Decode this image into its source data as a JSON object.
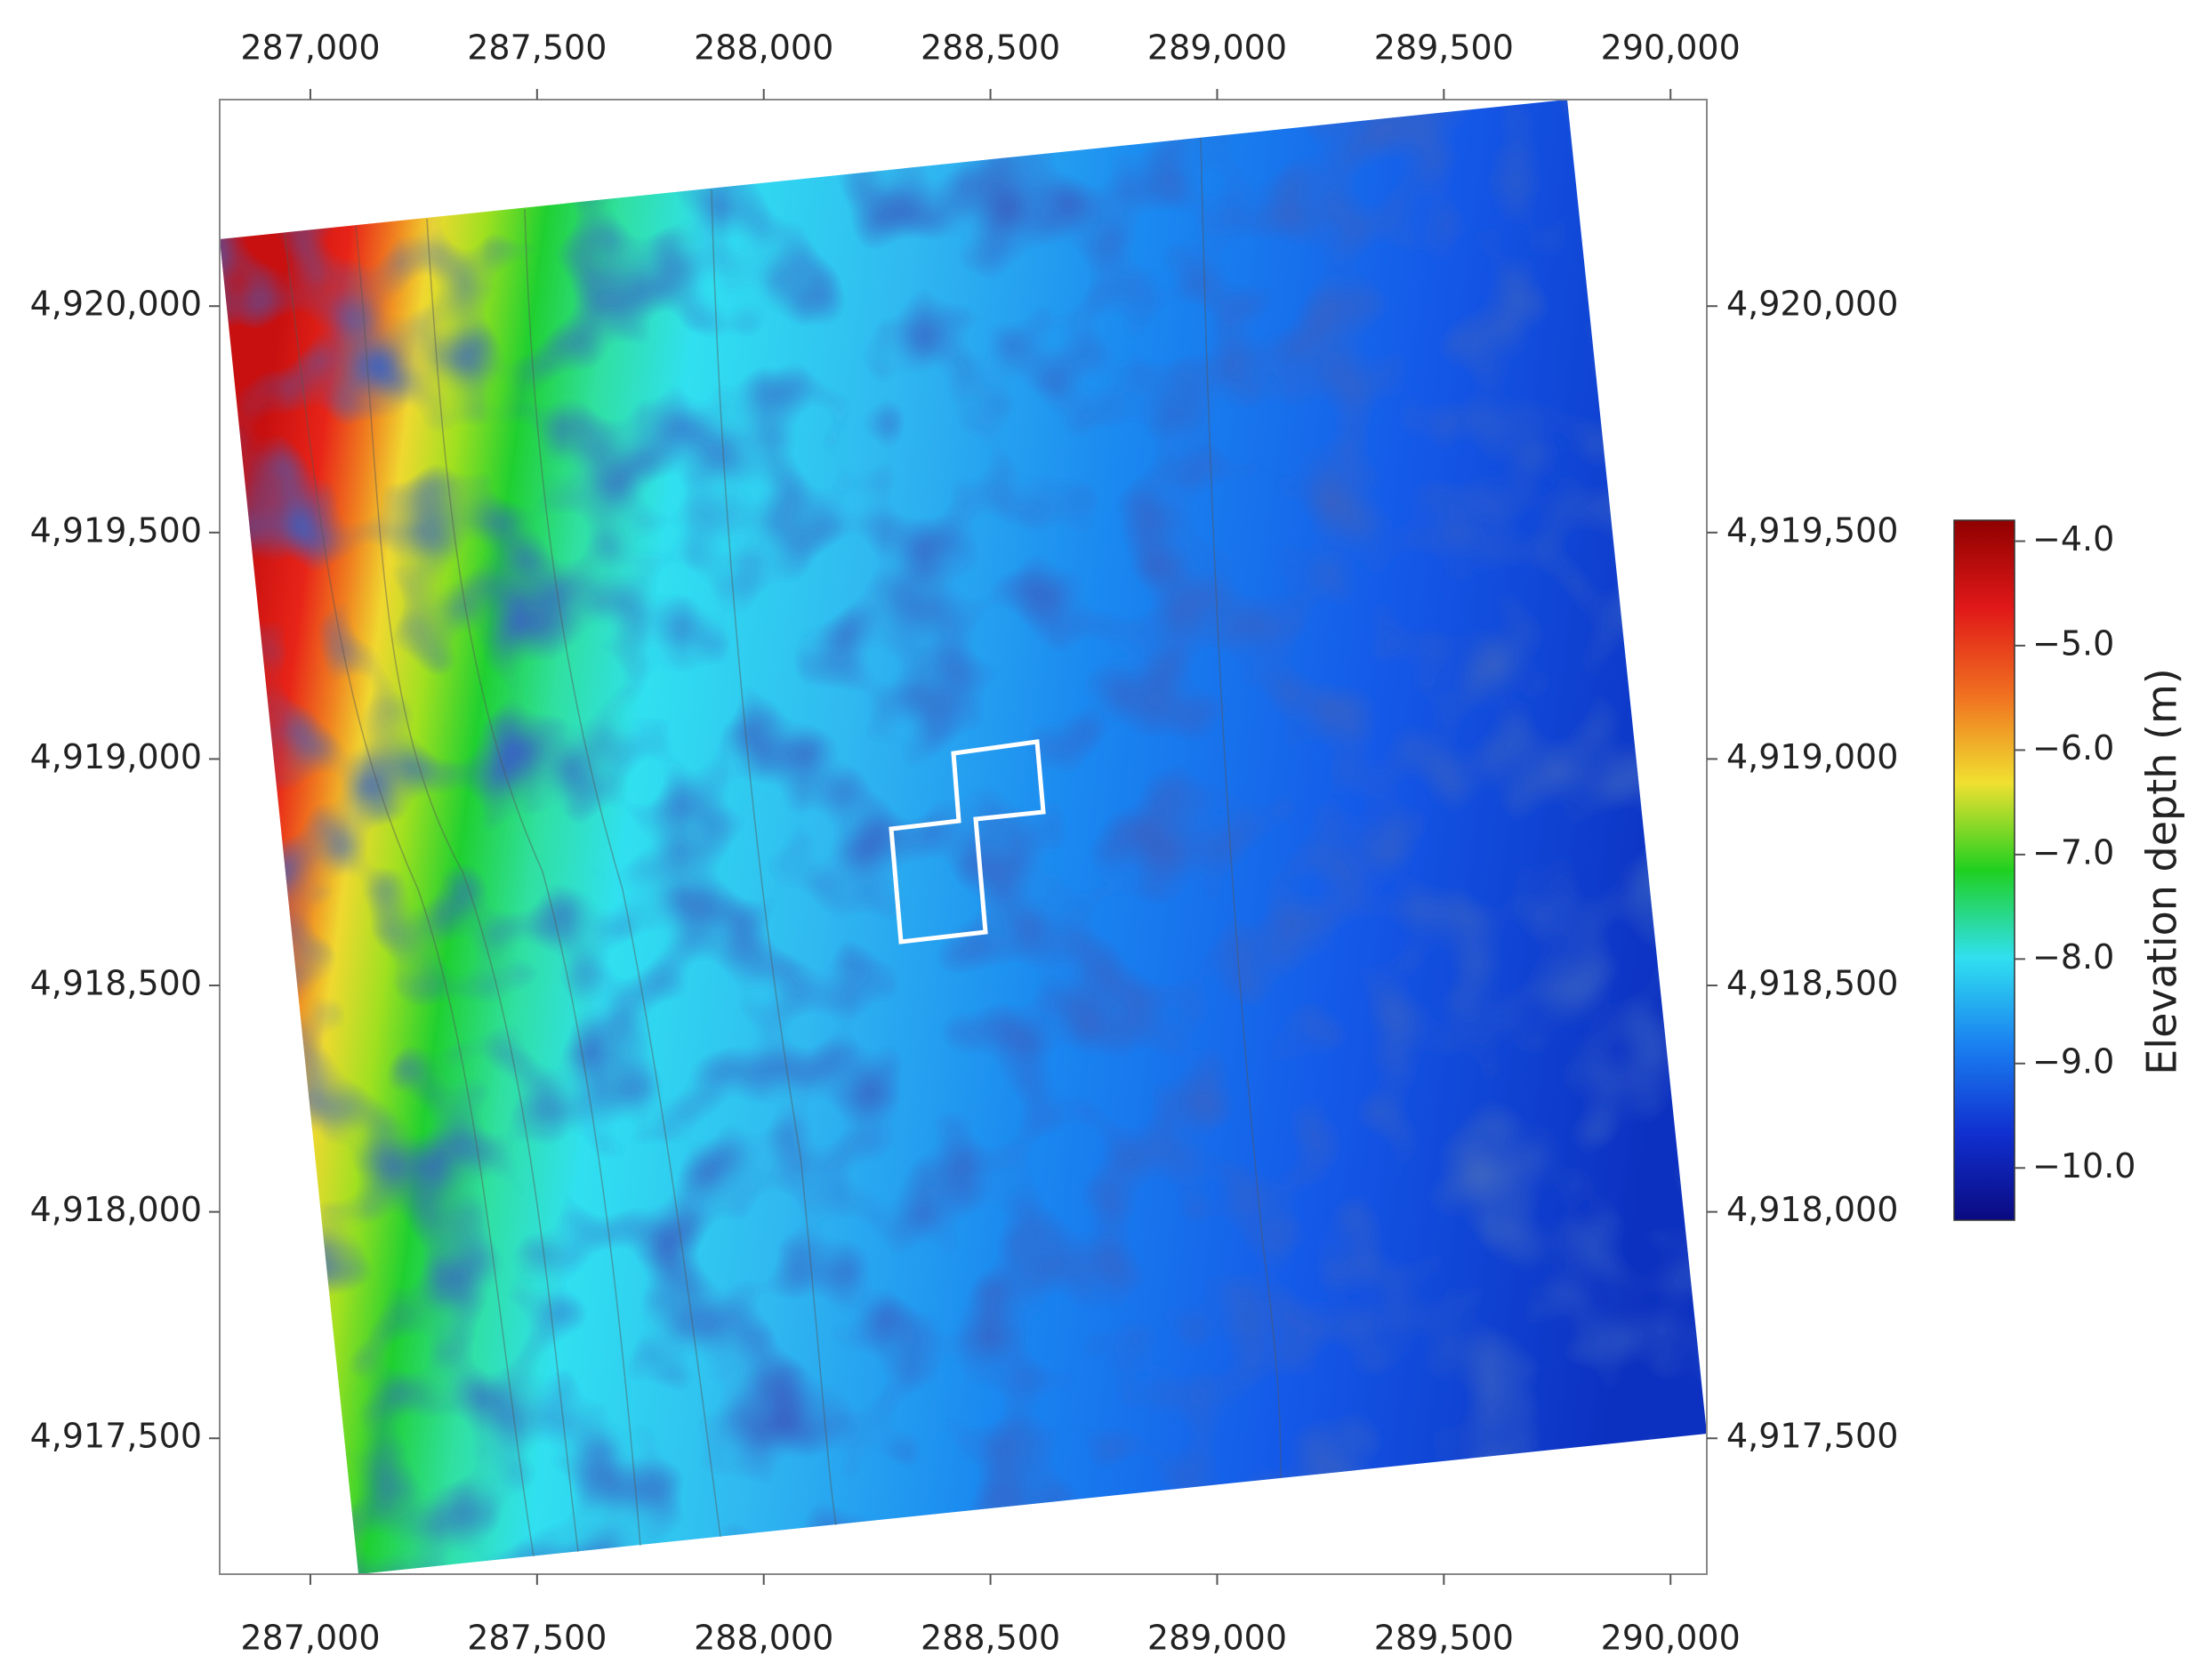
{
  "chart_data": {
    "type": "map",
    "xlim": [
      286800,
      290080
    ],
    "ylim": [
      4917200,
      4920456
    ],
    "xticks": [
      {
        "value": 287000,
        "label": "287,000"
      },
      {
        "value": 287500,
        "label": "287,500"
      },
      {
        "value": 288000,
        "label": "288,000"
      },
      {
        "value": 288500,
        "label": "288,500"
      },
      {
        "value": 289000,
        "label": "289,000"
      },
      {
        "value": 289500,
        "label": "289,500"
      },
      {
        "value": 290000,
        "label": "290,000"
      }
    ],
    "yticks": [
      {
        "value": 4917500,
        "label": "4,917,500"
      },
      {
        "value": 4918000,
        "label": "4,918,000"
      },
      {
        "value": 4918500,
        "label": "4,918,500"
      },
      {
        "value": 4919000,
        "label": "4,919,000"
      },
      {
        "value": 4919500,
        "label": "4,919,500"
      },
      {
        "value": 4920000,
        "label": "4,920,000"
      }
    ],
    "colorbar": {
      "label": "Elevation depth (m)",
      "clim": [
        -10.5,
        -3.8
      ],
      "ticks": [
        {
          "value": -4.0,
          "label": "−4.0"
        },
        {
          "value": -5.0,
          "label": "−5.0"
        },
        {
          "value": -6.0,
          "label": "−6.0"
        },
        {
          "value": -7.0,
          "label": "−7.0"
        },
        {
          "value": -8.0,
          "label": "−8.0"
        },
        {
          "value": -9.0,
          "label": "−9.0"
        },
        {
          "value": -10.0,
          "label": "−10.0"
        }
      ],
      "colormap": [
        "#0a0a80",
        "#1030d0",
        "#1a80f0",
        "#30e0f0",
        "#20d020",
        "#f0e030",
        "#f07020",
        "#e01818",
        "#900000"
      ]
    }
  }
}
